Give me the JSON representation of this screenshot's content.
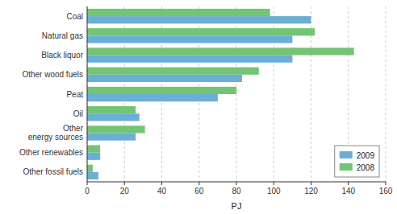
{
  "chart_data": {
    "type": "bar",
    "orientation": "horizontal",
    "categories": [
      "Coal",
      "Natural gas",
      "Black liquor",
      "Other wood fuels",
      "Peat",
      "Oil",
      "Other\nenergy sources",
      "Other renewables",
      "Other fossil fuels"
    ],
    "series": [
      {
        "name": "2009",
        "color": "#6baed6",
        "values": [
          120,
          110,
          110,
          83,
          70,
          28,
          26,
          7,
          6
        ]
      },
      {
        "name": "2008",
        "color": "#74c476",
        "values": [
          98,
          122,
          143,
          92,
          80,
          26,
          31,
          7,
          3
        ]
      }
    ],
    "x_label": "PJ",
    "xlim": [
      0,
      160
    ],
    "xticks": [
      0,
      20,
      40,
      60,
      80,
      100,
      120,
      140,
      160
    ],
    "grid": true,
    "legend": "lower right"
  }
}
